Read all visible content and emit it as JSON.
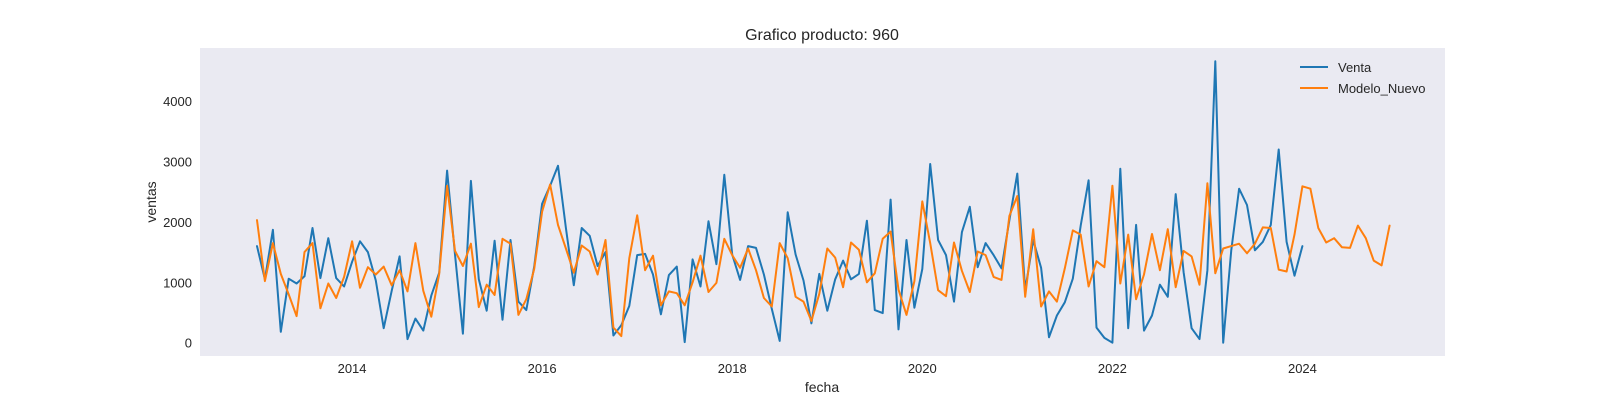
{
  "chart_data": {
    "type": "line",
    "title": "Grafico producto: 960",
    "xlabel": "fecha",
    "ylabel": "ventas",
    "xlim": [
      2012.4,
      2025.5
    ],
    "ylim": [
      -220,
      4880
    ],
    "x_ticks": [
      2014,
      2016,
      2018,
      2020,
      2022,
      2024
    ],
    "x_tick_labels": [
      "2014",
      "2016",
      "2018",
      "2020",
      "2022",
      "2024"
    ],
    "y_ticks": [
      0,
      1000,
      2000,
      3000,
      4000
    ],
    "y_tick_labels": [
      "0",
      "1000",
      "2000",
      "3000",
      "4000"
    ],
    "grid": false,
    "legend_position": "top-right",
    "colors": {
      "plot_background": "#eaeaf2",
      "venta": "#1f77b4",
      "modelo_nuevo": "#ff7f0e"
    },
    "series": [
      {
        "name": "Venta",
        "start": "2013-01",
        "frequency": "monthly",
        "values": [
          1600,
          1050,
          1870,
          180,
          1060,
          980,
          1100,
          1900,
          1070,
          1730,
          1070,
          930,
          1340,
          1680,
          1500,
          1030,
          240,
          860,
          1430,
          60,
          400,
          200,
          780,
          1160,
          2850,
          1460,
          150,
          2680,
          1050,
          530,
          1690,
          380,
          1700,
          680,
          540,
          1260,
          2300,
          2600,
          2930,
          1900,
          950,
          1900,
          1770,
          1270,
          1500,
          120,
          290,
          610,
          1450,
          1470,
          1130,
          470,
          1120,
          1260,
          10,
          1380,
          930,
          2010,
          1300,
          2780,
          1460,
          1040,
          1600,
          1570,
          1130,
          560,
          30,
          2160,
          1460,
          1030,
          320,
          1140,
          530,
          1050,
          1360,
          1050,
          1140,
          2020,
          540,
          490,
          2370,
          220,
          1700,
          580,
          1220,
          2960,
          1700,
          1450,
          680,
          1830,
          2250,
          1250,
          1650,
          1450,
          1230,
          2030,
          2800,
          870,
          1700,
          1240,
          90,
          450,
          670,
          1060,
          1940,
          2690,
          250,
          80,
          0,
          2880,
          240,
          1950,
          200,
          450,
          960,
          760,
          2460,
          1170,
          240,
          60,
          1200,
          4660,
          0,
          1520,
          2550,
          2280,
          1530,
          1670,
          1950,
          3200,
          1670,
          1110,
          1600
        ],
        "color": "#1f77b4"
      },
      {
        "name": "Modelo_Nuevo",
        "start": "2013-01",
        "frequency": "monthly",
        "values": [
          2030,
          1020,
          1650,
          1140,
          800,
          440,
          1500,
          1650,
          570,
          980,
          740,
          1090,
          1680,
          910,
          1250,
          1130,
          1260,
          950,
          1200,
          850,
          1650,
          860,
          430,
          1140,
          2600,
          1520,
          1270,
          1640,
          590,
          960,
          790,
          1720,
          1640,
          460,
          720,
          1220,
          2170,
          2620,
          1950,
          1560,
          1160,
          1610,
          1510,
          1130,
          1700,
          250,
          110,
          1400,
          2110,
          1200,
          1440,
          620,
          850,
          820,
          620,
          1000,
          1440,
          840,
          990,
          1720,
          1450,
          1240,
          1560,
          1200,
          740,
          600,
          1650,
          1400,
          760,
          680,
          360,
          810,
          1560,
          1410,
          920,
          1660,
          1540,
          1000,
          1150,
          1720,
          1840,
          880,
          460,
          1020,
          2340,
          1650,
          870,
          770,
          1660,
          1190,
          840,
          1510,
          1450,
          1090,
          1040,
          2100,
          2430,
          760,
          1880,
          600,
          850,
          680,
          1230,
          1860,
          1790,
          930,
          1350,
          1250,
          2600,
          980,
          1790,
          720,
          1130,
          1800,
          1200,
          1880,
          920,
          1520,
          1430,
          960,
          2640,
          1150,
          1560,
          1600,
          1640,
          1480,
          1640,
          1910,
          1900,
          1210,
          1180,
          1790,
          2590,
          2550,
          1900,
          1660,
          1730,
          1580,
          1570,
          1940,
          1730,
          1360,
          1280,
          1940
        ],
        "color": "#ff7f0e"
      }
    ]
  }
}
